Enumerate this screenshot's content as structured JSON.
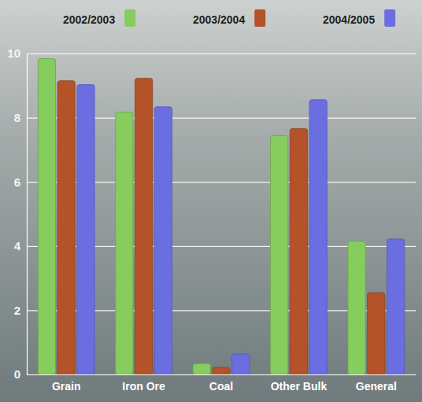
{
  "chart_data": {
    "type": "bar",
    "categories": [
      "Grain",
      "Iron Ore",
      "Coal",
      "Other Bulk",
      "General"
    ],
    "series": [
      {
        "name": "2002/2003",
        "color": "#86cc5e",
        "values": [
          9.84,
          8.17,
          0.34,
          7.44,
          4.15
        ]
      },
      {
        "name": "2003/2004",
        "color": "#b4522a",
        "values": [
          9.15,
          9.23,
          0.22,
          7.66,
          2.55
        ]
      },
      {
        "name": "2004/2005",
        "color": "#6a6ee0",
        "values": [
          9.03,
          8.34,
          0.64,
          8.56,
          4.22
        ]
      }
    ],
    "ylim": [
      0,
      10
    ],
    "yticks": [
      0,
      2,
      4,
      6,
      8,
      10
    ],
    "grid": true,
    "legend": "top"
  }
}
